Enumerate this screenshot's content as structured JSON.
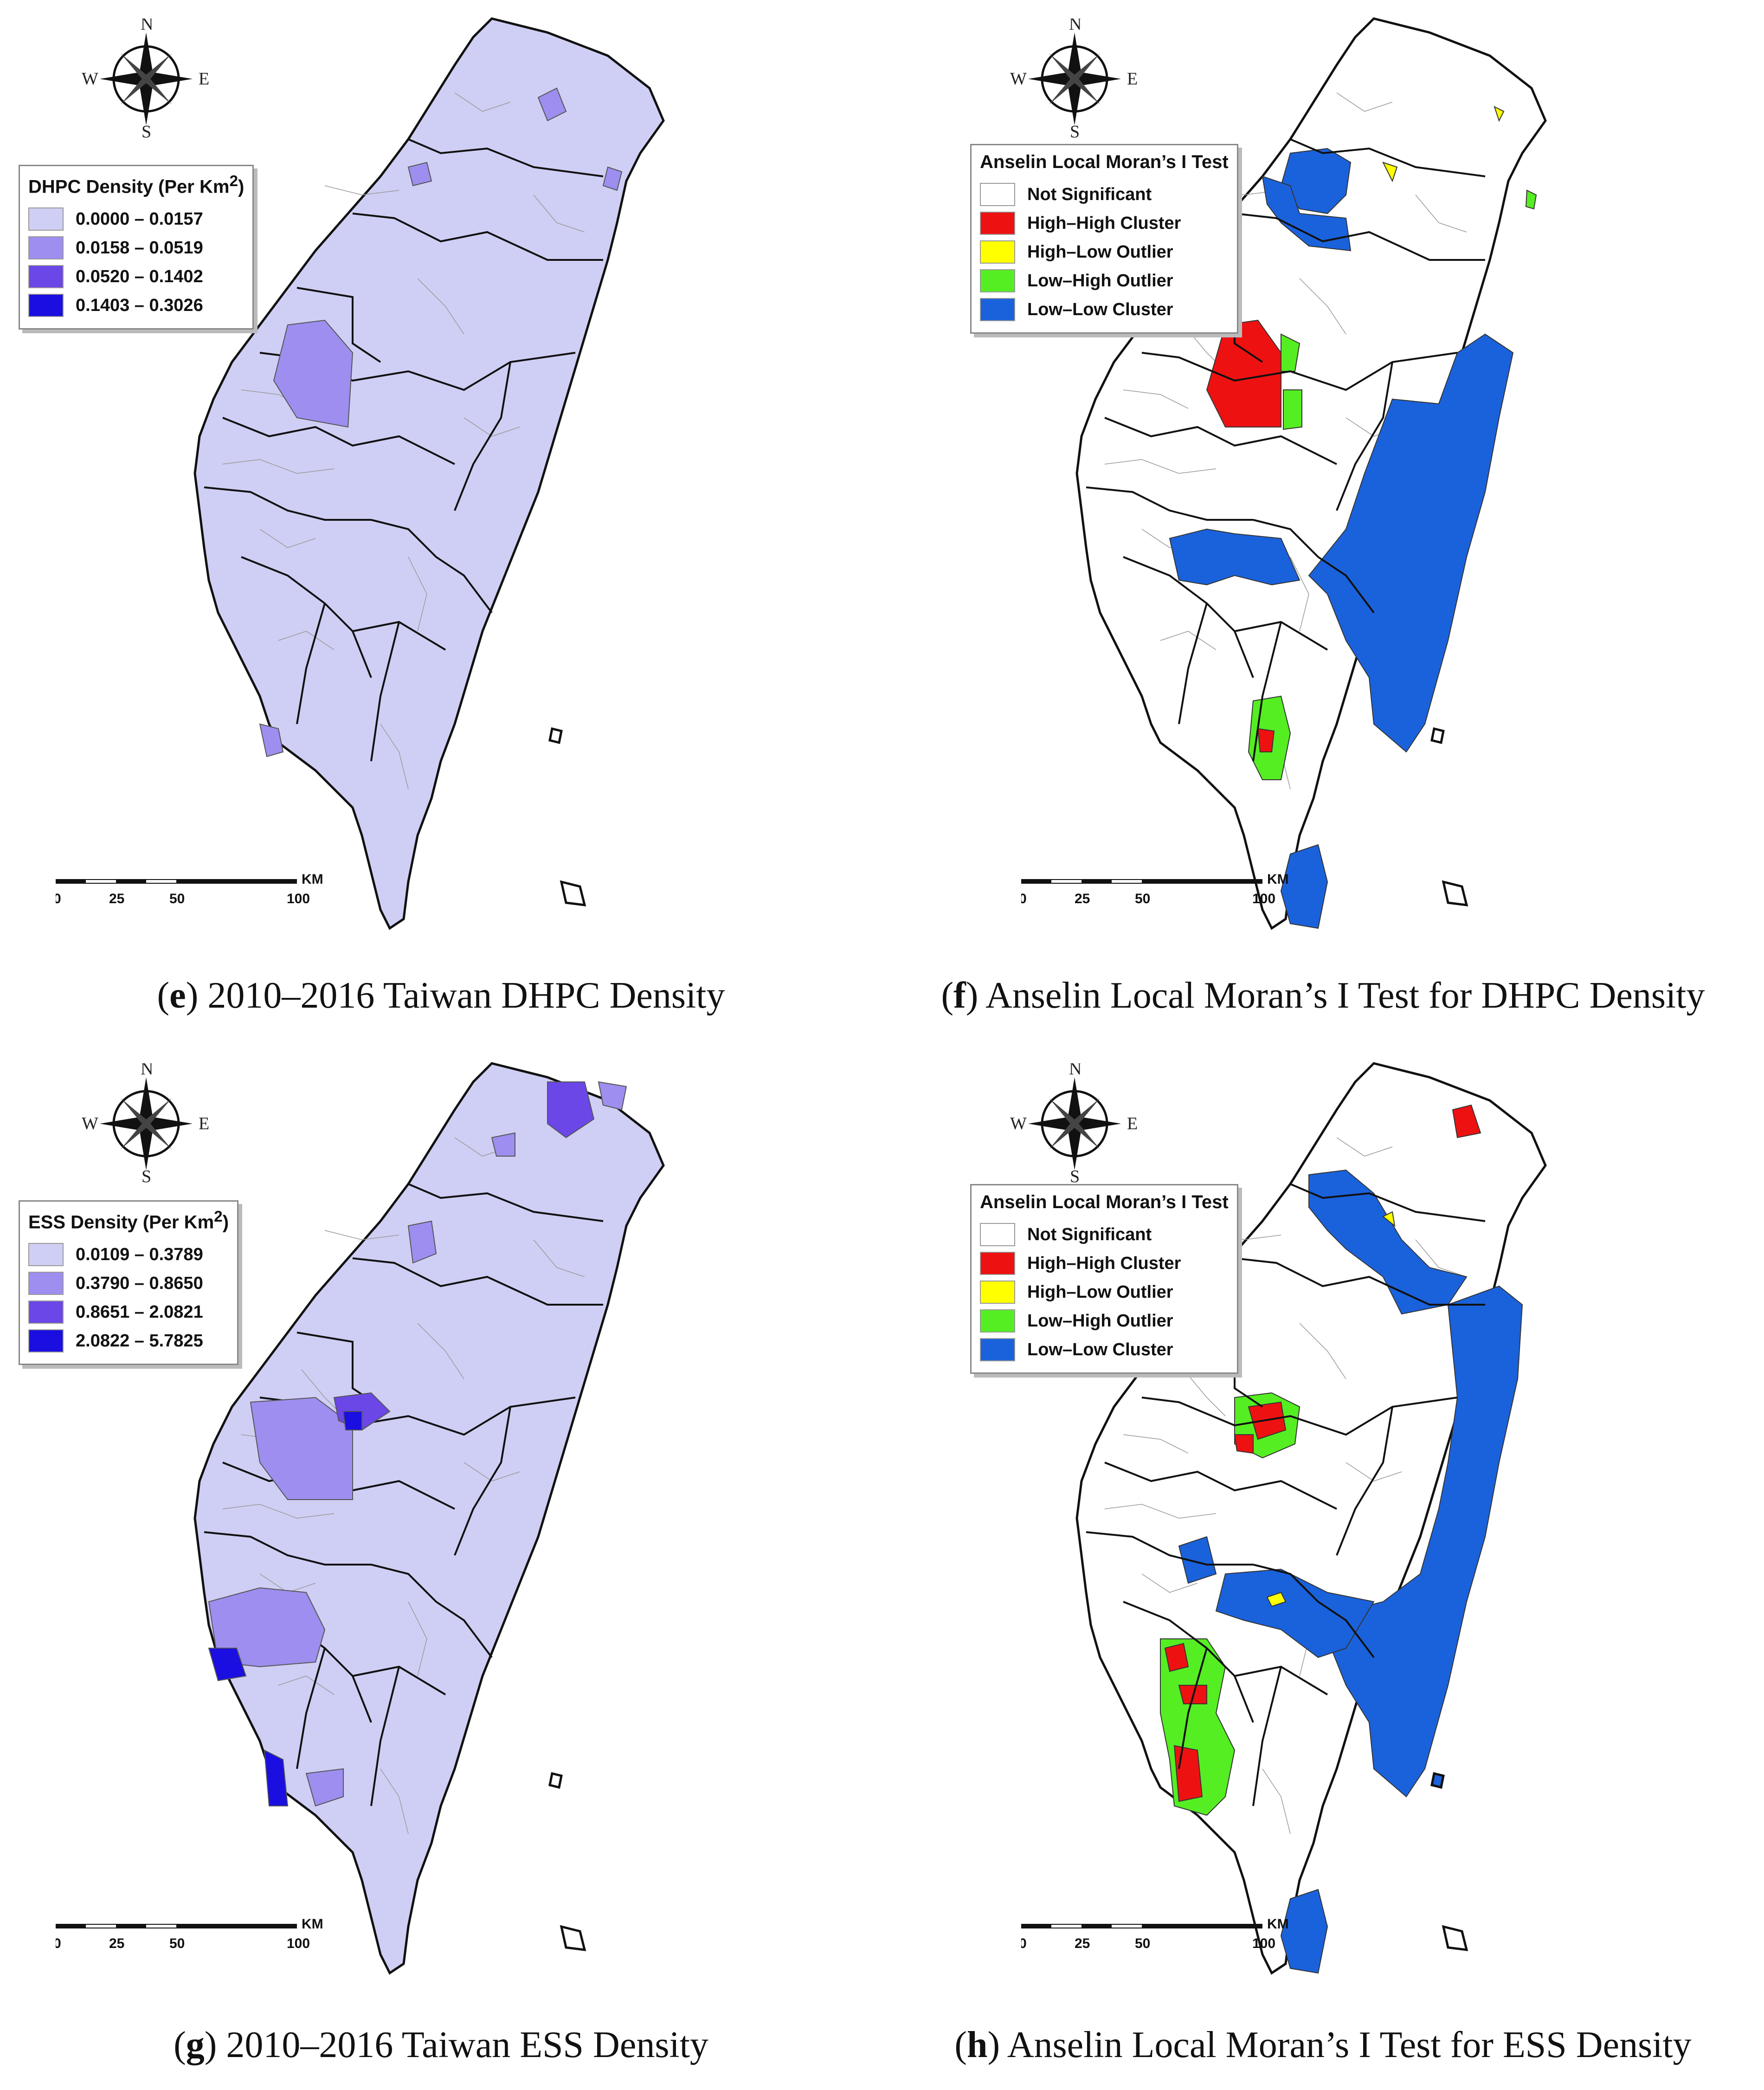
{
  "compass": {
    "n": "N",
    "s": "S",
    "e": "E",
    "w": "W"
  },
  "scale": {
    "unit": "KM",
    "ticks": [
      "0",
      "25",
      "50",
      "100"
    ]
  },
  "panels": [
    {
      "letter": "e",
      "caption": " 2010–2016 Taiwan DHPC Density",
      "legend_title": "DHPC Density (Per Km",
      "legend_sup": "2",
      "legend_close": ")",
      "legend_items": [
        {
          "label": "0.0000 – 0.0157",
          "color": "#cfcff5"
        },
        {
          "label": "0.0158 – 0.0519",
          "color": "#9d8ef0"
        },
        {
          "label": "0.0520 – 0.1402",
          "color": "#6a47e6"
        },
        {
          "label": "0.1403 – 0.3026",
          "color": "#1a0ee0"
        }
      ]
    },
    {
      "letter": "f",
      "caption": " Anselin Local Moran’s I Test for DHPC Density",
      "legend_title": "Anselin Local Moran’s I Test",
      "legend_items": [
        {
          "label": "Not Significant",
          "color": "#ffffff"
        },
        {
          "label": "High–High Cluster",
          "color": "#ee1111"
        },
        {
          "label": "High–Low Outlier",
          "color": "#ffff00"
        },
        {
          "label": "Low–High Outlier",
          "color": "#55ee22"
        },
        {
          "label": "Low–Low Cluster",
          "color": "#1a62dc"
        }
      ]
    },
    {
      "letter": "g",
      "caption": " 2010–2016 Taiwan ESS Density",
      "legend_title": "ESS Density (Per Km",
      "legend_sup": "2",
      "legend_close": ")",
      "legend_items": [
        {
          "label": "0.0109 – 0.3789",
          "color": "#cfcff5"
        },
        {
          "label": "0.3790 – 0.8650",
          "color": "#9d8ef0"
        },
        {
          "label": "0.8651 – 2.0821",
          "color": "#6a47e6"
        },
        {
          "label": "2.0822 – 5.7825",
          "color": "#1a0ee0"
        }
      ]
    },
    {
      "letter": "h",
      "caption": " Anselin Local Moran’s I Test for ESS Density",
      "legend_title": "Anselin Local Moran’s I Test",
      "legend_items": [
        {
          "label": "Not Significant",
          "color": "#ffffff"
        },
        {
          "label": "High–High Cluster",
          "color": "#ee1111"
        },
        {
          "label": "High–Low Outlier",
          "color": "#ffff00"
        },
        {
          "label": "Low–High Outlier",
          "color": "#55ee22"
        },
        {
          "label": "Low–Low Cluster",
          "color": "#1a62dc"
        }
      ]
    }
  ]
}
